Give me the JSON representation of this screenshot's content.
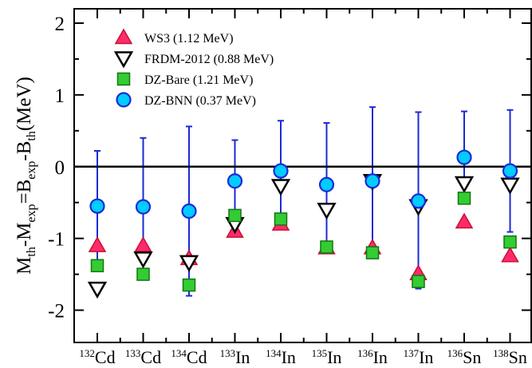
{
  "chart_data": {
    "type": "scatter",
    "ylabel": {
      "parts": [
        {
          "text": "M",
          "style": "normal"
        },
        {
          "text": "th",
          "style": "sub"
        },
        {
          "text": "-M",
          "style": "normal"
        },
        {
          "text": "exp",
          "style": "sub"
        },
        {
          "text": "=B",
          "style": "normal"
        },
        {
          "text": "exp",
          "style": "sub"
        },
        {
          "text": "-B",
          "style": "normal"
        },
        {
          "text": "th",
          "style": "sub"
        },
        {
          "text": "(MeV)",
          "style": "normal"
        }
      ]
    },
    "ylim": [
      -2.45,
      2.2
    ],
    "yticks": [
      -2,
      -1,
      0,
      1,
      2
    ],
    "ytick_labels": [
      "-2",
      "-1",
      "0",
      "1",
      "2"
    ],
    "zero_line": true,
    "grid": false,
    "legend_position": "top-left",
    "categories": [
      {
        "mass": "132",
        "element": "Cd"
      },
      {
        "mass": "133",
        "element": "Cd"
      },
      {
        "mass": "134",
        "element": "Cd"
      },
      {
        "mass": "133",
        "element": "In"
      },
      {
        "mass": "134",
        "element": "In"
      },
      {
        "mass": "135",
        "element": "In"
      },
      {
        "mass": "136",
        "element": "In"
      },
      {
        "mass": "137",
        "element": "In"
      },
      {
        "mass": "136",
        "element": "Sn"
      },
      {
        "mass": "138",
        "element": "Sn"
      }
    ],
    "series": [
      {
        "name": "WS3 (1.12 MeV)",
        "marker": "triangle-up",
        "fill": "#ff2a6d",
        "stroke": "#c8102e",
        "values": [
          -1.1,
          -1.1,
          -1.28,
          -0.9,
          -0.8,
          -1.13,
          -1.13,
          -1.49,
          -0.77,
          -1.24
        ]
      },
      {
        "name": "FRDM-2012 (0.88 MeV)",
        "marker": "triangle-down",
        "fill": "#ffffff",
        "stroke": "#000000",
        "values": [
          -1.7,
          -1.28,
          -1.33,
          -0.8,
          -0.27,
          -0.6,
          -0.2,
          -0.55,
          -0.23,
          -0.25
        ]
      },
      {
        "name": "DZ-Bare (1.21 MeV)",
        "marker": "square",
        "fill": "#33cc33",
        "stroke": "#117711",
        "values": [
          -1.38,
          -1.5,
          -1.65,
          -0.68,
          -0.73,
          -1.12,
          -1.2,
          -1.6,
          -0.44,
          -1.05
        ]
      },
      {
        "name": "DZ-BNN (0.37 MeV)",
        "marker": "circle",
        "fill": "#00ccff",
        "stroke": "#1a2bd6",
        "values": [
          -0.55,
          -0.56,
          -0.62,
          -0.2,
          -0.06,
          -0.25,
          -0.2,
          -0.48,
          0.13,
          -0.06
        ],
        "error_low": [
          0.77,
          0.96,
          1.18,
          0.57,
          0.7,
          0.86,
          1.03,
          1.22,
          0.58,
          0.85
        ],
        "error_high": [
          0.77,
          0.96,
          1.18,
          0.57,
          0.7,
          0.86,
          1.03,
          1.24,
          0.64,
          0.85
        ],
        "error_color": "#1a2bd6"
      }
    ]
  }
}
